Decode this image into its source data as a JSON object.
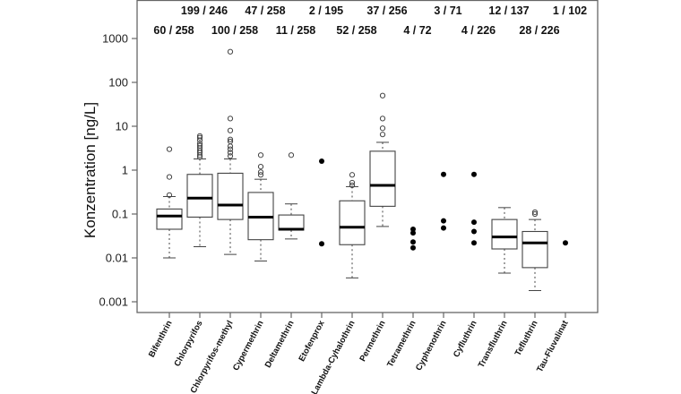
{
  "chart_data": {
    "type": "boxplot",
    "ylabel": "Konzentration [ng/L]",
    "xlabel": "",
    "yscale": "log",
    "ylim": [
      0.001,
      1000
    ],
    "yticks": [
      "1000",
      "100",
      "10",
      "1",
      "0.1",
      "0.01",
      "0.001"
    ],
    "grid": false,
    "categories": [
      "Bifenthrin",
      "Chlorpyrifos",
      "Chlorpyrifos-methyl",
      "Cypermethrin",
      "Deltamethrin",
      "Etofenprox",
      "Lambda-Cyhalothrin",
      "Permethrin",
      "Tetramethrin",
      "Cyphenothrin",
      "Cyfluthrin",
      "Transfluthrin",
      "Tefluthrin",
      "Tau-Fluvalinat"
    ],
    "detections": [
      "60 / 258",
      "199 / 246",
      "100 / 258",
      "47 / 258",
      "11 / 258",
      "2 / 195",
      "52 / 258",
      "37 / 256",
      "4 / 72",
      "3 / 71",
      "4 / 226",
      "12 / 137",
      "28 / 226",
      "1 / 102"
    ],
    "boxes": [
      {
        "whisker_low": 0.01,
        "q1": 0.045,
        "median": 0.09,
        "q3": 0.13,
        "whisker_high": 0.25,
        "outliers": [
          0.27,
          0.7,
          3
        ]
      },
      {
        "whisker_low": 0.018,
        "q1": 0.085,
        "median": 0.23,
        "q3": 0.8,
        "whisker_high": 1.8,
        "outliers": [
          2,
          2.2,
          2.5,
          2.8,
          3.2,
          3.6,
          4,
          4.8,
          5.5,
          6
        ]
      },
      {
        "whisker_low": 0.012,
        "q1": 0.075,
        "median": 0.16,
        "q3": 0.85,
        "whisker_high": 1.8,
        "outliers": [
          2.1,
          2.5,
          3,
          3.5,
          4.5,
          5,
          8,
          15,
          500
        ]
      },
      {
        "whisker_low": 0.0085,
        "q1": 0.026,
        "median": 0.085,
        "q3": 0.31,
        "whisker_high": 0.62,
        "outliers": [
          0.78,
          0.9,
          1.2,
          2.2
        ]
      },
      {
        "whisker_low": 0.027,
        "q1": 0.043,
        "median": 0.045,
        "q3": 0.095,
        "whisker_high": 0.17,
        "outliers": [
          2.2
        ]
      },
      {
        "points": [
          1.6,
          0.021
        ]
      },
      {
        "whisker_low": 0.0035,
        "q1": 0.02,
        "median": 0.05,
        "q3": 0.2,
        "whisker_high": 0.42,
        "outliers": [
          0.45,
          0.52,
          0.78
        ]
      },
      {
        "whisker_low": 0.052,
        "q1": 0.15,
        "median": 0.45,
        "q3": 2.7,
        "whisker_high": 4.3,
        "outliers": [
          6.5,
          9,
          15,
          50
        ]
      },
      {
        "points": [
          0.045,
          0.037,
          0.023,
          0.017
        ]
      },
      {
        "points": [
          0.8,
          0.07,
          0.048
        ]
      },
      {
        "points": [
          0.8,
          0.065,
          0.04,
          0.022
        ]
      },
      {
        "whisker_low": 0.0045,
        "q1": 0.016,
        "median": 0.03,
        "q3": 0.075,
        "whisker_high": 0.14,
        "outliers": []
      },
      {
        "whisker_low": 0.0018,
        "q1": 0.006,
        "median": 0.022,
        "q3": 0.04,
        "whisker_high": 0.075,
        "outliers": [
          0.1,
          0.11
        ]
      },
      {
        "points": [
          0.022
        ]
      }
    ]
  }
}
